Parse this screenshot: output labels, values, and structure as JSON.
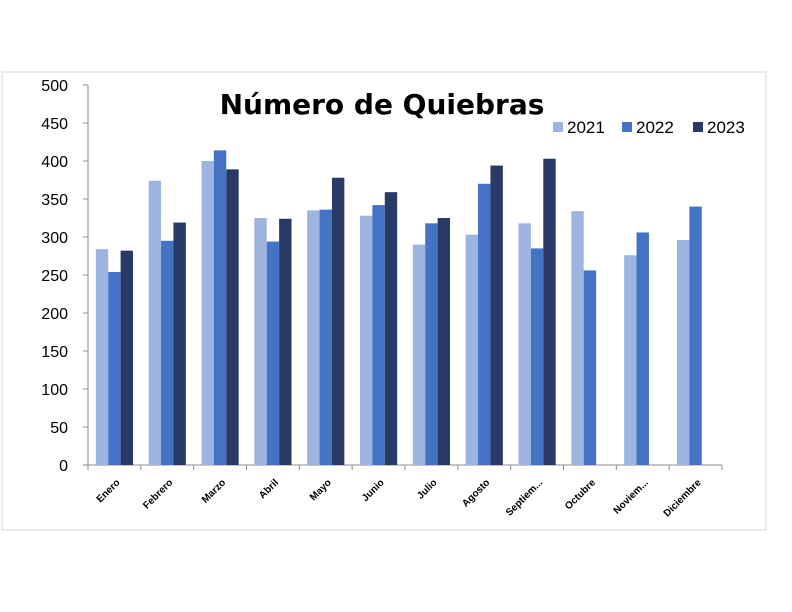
{
  "chart_data": {
    "type": "bar",
    "title": "Número de Quiebras",
    "xlabel": "",
    "ylabel": "",
    "ylim": [
      0,
      500
    ],
    "yticks": [
      0,
      50,
      100,
      150,
      200,
      250,
      300,
      350,
      400,
      450,
      500
    ],
    "categories": [
      "Enero",
      "Febrero",
      "Marzo",
      "Abril",
      "Mayo",
      "Junio",
      "Julio",
      "Agosto",
      "Septiem...",
      "Octubre",
      "Noviem...",
      "Diciembre"
    ],
    "series": [
      {
        "name": "2021",
        "color": "#9db4e0",
        "values": [
          284,
          374,
          400,
          325,
          335,
          328,
          290,
          303,
          318,
          334,
          276,
          296
        ]
      },
      {
        "name": "2022",
        "color": "#4472c4",
        "values": [
          254,
          295,
          414,
          294,
          336,
          342,
          318,
          370,
          285,
          256,
          306,
          340
        ]
      },
      {
        "name": "2023",
        "color": "#2a3a66",
        "values": [
          282,
          319,
          389,
          324,
          378,
          359,
          325,
          394,
          403,
          null,
          null,
          null
        ]
      }
    ],
    "grid": false,
    "legend": "top-right"
  }
}
